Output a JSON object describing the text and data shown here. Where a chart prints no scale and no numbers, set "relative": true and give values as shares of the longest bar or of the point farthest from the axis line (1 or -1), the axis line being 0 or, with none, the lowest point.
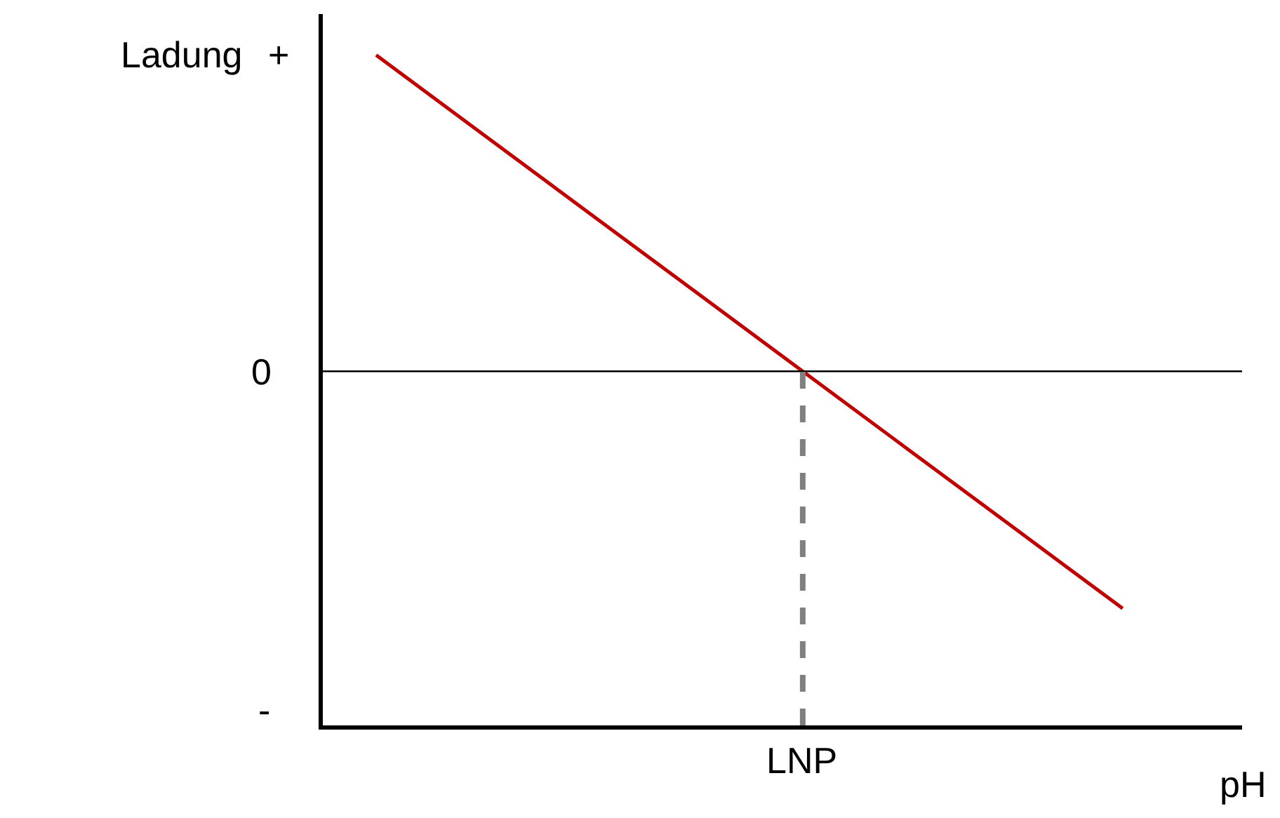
{
  "chart_data": {
    "type": "line",
    "relative": true,
    "ylabel": "Ladung",
    "xlabel": "pH",
    "categories": [
      null,
      null,
      null,
      null,
      null,
      null,
      null,
      null
    ],
    "series": [
      {
        "color": "#c00000",
        "values": [
          1,
          0.75,
          0.5,
          0.25,
          0,
          -0.25,
          -0.5,
          -0.75
        ]
      }
    ],
    "ref_lines": [
      {
        "axis": "y",
        "value": 0,
        "color": "#000000",
        "line_style": "solid"
      }
    ],
    "annotations": [
      "+",
      "0",
      "-",
      "LNP"
    ],
    "marker": "none",
    "line_style": "solid",
    "legend": false
  }
}
